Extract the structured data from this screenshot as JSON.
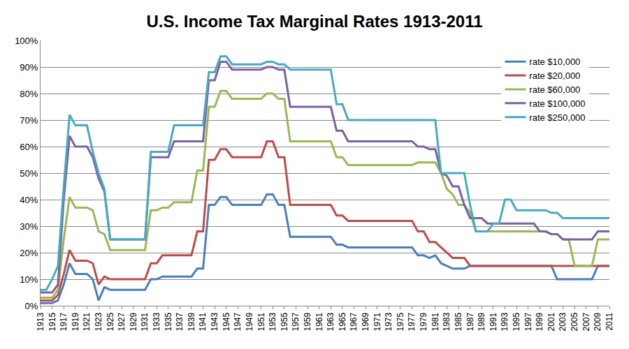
{
  "chart_data": {
    "type": "line",
    "title": "U.S. Income Tax Marginal Rates 1913-2011",
    "x": [
      1913,
      1914,
      1915,
      1916,
      1917,
      1918,
      1919,
      1920,
      1921,
      1922,
      1923,
      1924,
      1925,
      1926,
      1927,
      1928,
      1929,
      1930,
      1931,
      1932,
      1933,
      1934,
      1935,
      1936,
      1937,
      1938,
      1939,
      1940,
      1941,
      1942,
      1943,
      1944,
      1945,
      1946,
      1947,
      1948,
      1949,
      1950,
      1951,
      1952,
      1953,
      1954,
      1955,
      1956,
      1957,
      1958,
      1959,
      1960,
      1961,
      1962,
      1963,
      1964,
      1965,
      1966,
      1967,
      1968,
      1969,
      1970,
      1971,
      1972,
      1973,
      1974,
      1975,
      1976,
      1977,
      1978,
      1979,
      1980,
      1981,
      1982,
      1983,
      1984,
      1985,
      1986,
      1987,
      1988,
      1989,
      1990,
      1991,
      1992,
      1993,
      1994,
      1995,
      1996,
      1997,
      1998,
      1999,
      2000,
      2001,
      2002,
      2003,
      2004,
      2005,
      2006,
      2007,
      2008,
      2009,
      2010,
      2011
    ],
    "series": [
      {
        "name": "rate $10,000",
        "color": "#4a7ebb",
        "values": [
          1,
          1,
          1,
          2,
          8,
          16,
          12,
          12,
          12,
          10,
          2,
          7,
          6,
          6,
          6,
          6,
          6,
          6,
          6,
          10,
          10,
          11,
          11,
          11,
          11,
          11,
          11,
          14,
          14,
          38,
          38,
          41,
          41,
          38,
          38,
          38,
          38,
          38,
          38,
          42,
          42,
          38,
          38,
          26,
          26,
          26,
          26,
          26,
          26,
          26,
          26,
          23,
          23,
          22,
          22,
          22,
          22,
          22,
          22,
          22,
          22,
          22,
          22,
          22,
          22,
          19,
          19,
          18,
          19,
          16,
          15,
          14,
          14,
          14,
          15,
          15,
          15,
          15,
          15,
          15,
          15,
          15,
          15,
          15,
          15,
          15,
          15,
          15,
          15,
          10,
          10,
          10,
          10,
          10,
          10,
          10,
          15,
          15,
          15
        ]
      },
      {
        "name": "rate $20,000",
        "color": "#be4b48",
        "values": [
          2,
          2,
          2,
          4,
          12,
          21,
          17,
          17,
          17,
          16,
          8,
          11,
          10,
          10,
          10,
          10,
          10,
          10,
          10,
          16,
          16,
          19,
          19,
          19,
          19,
          19,
          19,
          28,
          28,
          55,
          55,
          59,
          59,
          56,
          56,
          56,
          56,
          56,
          56,
          62,
          62,
          56,
          56,
          38,
          38,
          38,
          38,
          38,
          38,
          38,
          38,
          34,
          34,
          32,
          32,
          32,
          32,
          32,
          32,
          32,
          32,
          32,
          32,
          32,
          32,
          28,
          28,
          24,
          24,
          22,
          20,
          18,
          18,
          18,
          15,
          15,
          15,
          15,
          15,
          15,
          15,
          15,
          15,
          15,
          15,
          15,
          15,
          15,
          15,
          15,
          15,
          15,
          15,
          15,
          15,
          15,
          15,
          15,
          15
        ]
      },
      {
        "name": "rate $60,000",
        "color": "#98b954",
        "values": [
          3,
          3,
          3,
          6,
          25,
          41,
          37,
          37,
          37,
          36,
          28,
          27,
          21,
          21,
          21,
          21,
          21,
          21,
          21,
          36,
          36,
          37,
          37,
          39,
          39,
          39,
          39,
          51,
          51,
          75,
          75,
          81,
          81,
          78,
          78,
          78,
          78,
          78,
          78,
          80,
          80,
          78,
          78,
          62,
          62,
          62,
          62,
          62,
          62,
          62,
          62,
          56,
          56,
          53,
          53,
          53,
          53,
          53,
          53,
          53,
          53,
          53,
          53,
          53,
          53,
          54,
          54,
          54,
          54,
          50,
          44,
          42,
          38,
          38,
          35,
          28,
          28,
          28,
          28,
          28,
          28,
          28,
          28,
          28,
          28,
          28,
          28,
          28,
          27,
          27,
          25,
          25,
          15,
          15,
          15,
          15,
          25,
          25,
          25
        ]
      },
      {
        "name": "rate $100,000",
        "color": "#7d60a0",
        "values": [
          5,
          5,
          5,
          8,
          40,
          64,
          60,
          60,
          60,
          56,
          48,
          43,
          25,
          25,
          25,
          25,
          25,
          25,
          25,
          56,
          56,
          56,
          56,
          62,
          62,
          62,
          62,
          62,
          62,
          85,
          85,
          92,
          92,
          89,
          89,
          89,
          89,
          89,
          89,
          90,
          90,
          89,
          89,
          75,
          75,
          75,
          75,
          75,
          75,
          75,
          75,
          66,
          66,
          62,
          62,
          62,
          62,
          62,
          62,
          62,
          62,
          62,
          62,
          62,
          62,
          60,
          60,
          59,
          59,
          50,
          49,
          45,
          45,
          38,
          33,
          33,
          33,
          31,
          31,
          31,
          31,
          31,
          31,
          31,
          31,
          31,
          28,
          28,
          27,
          27,
          25,
          25,
          25,
          25,
          25,
          25,
          28,
          28,
          28
        ]
      },
      {
        "name": "rate $250,000",
        "color": "#46aac5",
        "values": [
          6,
          6,
          10,
          15,
          45,
          72,
          68,
          68,
          68,
          58,
          50,
          44,
          25,
          25,
          25,
          25,
          25,
          25,
          25,
          58,
          58,
          58,
          58,
          68,
          68,
          68,
          68,
          68,
          68,
          88,
          88,
          94,
          94,
          91,
          91,
          91,
          91,
          91,
          91,
          92,
          92,
          91,
          91,
          89,
          89,
          89,
          89,
          89,
          89,
          89,
          89,
          76,
          76,
          70,
          70,
          70,
          70,
          70,
          70,
          70,
          70,
          70,
          70,
          70,
          70,
          70,
          70,
          70,
          70,
          50,
          50,
          50,
          50,
          50,
          38,
          28,
          28,
          28,
          31,
          31,
          40,
          40,
          36,
          36,
          36,
          36,
          36,
          36,
          35,
          35,
          33,
          33,
          33,
          33,
          33,
          33,
          33,
          33,
          33
        ]
      }
    ],
    "xlim": [
      1913,
      2011
    ],
    "xticks": [
      1913,
      1915,
      1917,
      1919,
      1921,
      1923,
      1925,
      1927,
      1929,
      1931,
      1933,
      1935,
      1937,
      1939,
      1941,
      1943,
      1945,
      1947,
      1949,
      1951,
      1953,
      1955,
      1957,
      1959,
      1961,
      1963,
      1965,
      1967,
      1969,
      1971,
      1973,
      1975,
      1977,
      1979,
      1981,
      1983,
      1985,
      1987,
      1989,
      1991,
      1993,
      1995,
      1997,
      1999,
      2001,
      2003,
      2005,
      2007,
      2009,
      2011
    ],
    "ylim": [
      0,
      100
    ],
    "yticks": [
      {
        "value": 0,
        "label": "0%"
      },
      {
        "value": 10,
        "label": "10%"
      },
      {
        "value": 20,
        "label": "20%"
      },
      {
        "value": 30,
        "label": "30%"
      },
      {
        "value": 40,
        "label": "40%"
      },
      {
        "value": 50,
        "label": "50%"
      },
      {
        "value": 60,
        "label": "60%"
      },
      {
        "value": 70,
        "label": "70%"
      },
      {
        "value": 80,
        "label": "80%"
      },
      {
        "value": 90,
        "label": "90%"
      },
      {
        "value": 100,
        "label": "100%"
      }
    ],
    "grid": true,
    "legend": "upper right"
  }
}
